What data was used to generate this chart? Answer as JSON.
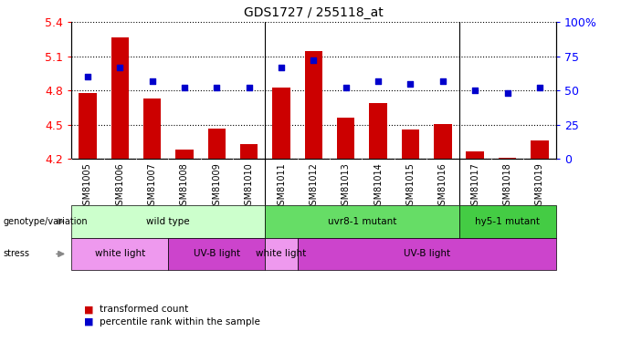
{
  "title": "GDS1727 / 255118_at",
  "samples": [
    "GSM81005",
    "GSM81006",
    "GSM81007",
    "GSM81008",
    "GSM81009",
    "GSM81010",
    "GSM81011",
    "GSM81012",
    "GSM81013",
    "GSM81014",
    "GSM81015",
    "GSM81016",
    "GSM81017",
    "GSM81018",
    "GSM81019"
  ],
  "bar_values": [
    4.78,
    5.27,
    4.73,
    4.28,
    4.47,
    4.33,
    4.83,
    5.15,
    4.56,
    4.69,
    4.46,
    4.51,
    4.27,
    4.21,
    4.36
  ],
  "dot_values": [
    60,
    67,
    57,
    52,
    52,
    52,
    67,
    72,
    52,
    57,
    55,
    57,
    50,
    48,
    52
  ],
  "ymin": 4.2,
  "ymax": 5.4,
  "yticks": [
    4.2,
    4.5,
    4.8,
    5.1,
    5.4
  ],
  "right_yticks": [
    0,
    25,
    50,
    75,
    100
  ],
  "bar_color": "#cc0000",
  "dot_color": "#0000cc",
  "bar_bottom": 4.2,
  "genotype_groups": [
    {
      "label": "wild type",
      "start": 0,
      "end": 6,
      "color": "#ccffcc"
    },
    {
      "label": "uvr8-1 mutant",
      "start": 6,
      "end": 12,
      "color": "#66dd66"
    },
    {
      "label": "hy5-1 mutant",
      "start": 12,
      "end": 15,
      "color": "#44cc44"
    }
  ],
  "stress_groups": [
    {
      "label": "white light",
      "start": 0,
      "end": 3,
      "color": "#ee99ee"
    },
    {
      "label": "UV-B light",
      "start": 3,
      "end": 6,
      "color": "#cc44cc"
    },
    {
      "label": "white light",
      "start": 6,
      "end": 7,
      "color": "#ee99ee"
    },
    {
      "label": "UV-B light",
      "start": 7,
      "end": 15,
      "color": "#cc44cc"
    }
  ],
  "plot_bg": "#ffffff",
  "xtick_bg": "#cccccc",
  "legend_items": [
    {
      "label": "transformed count",
      "color": "#cc0000"
    },
    {
      "label": "percentile rank within the sample",
      "color": "#0000cc"
    }
  ]
}
